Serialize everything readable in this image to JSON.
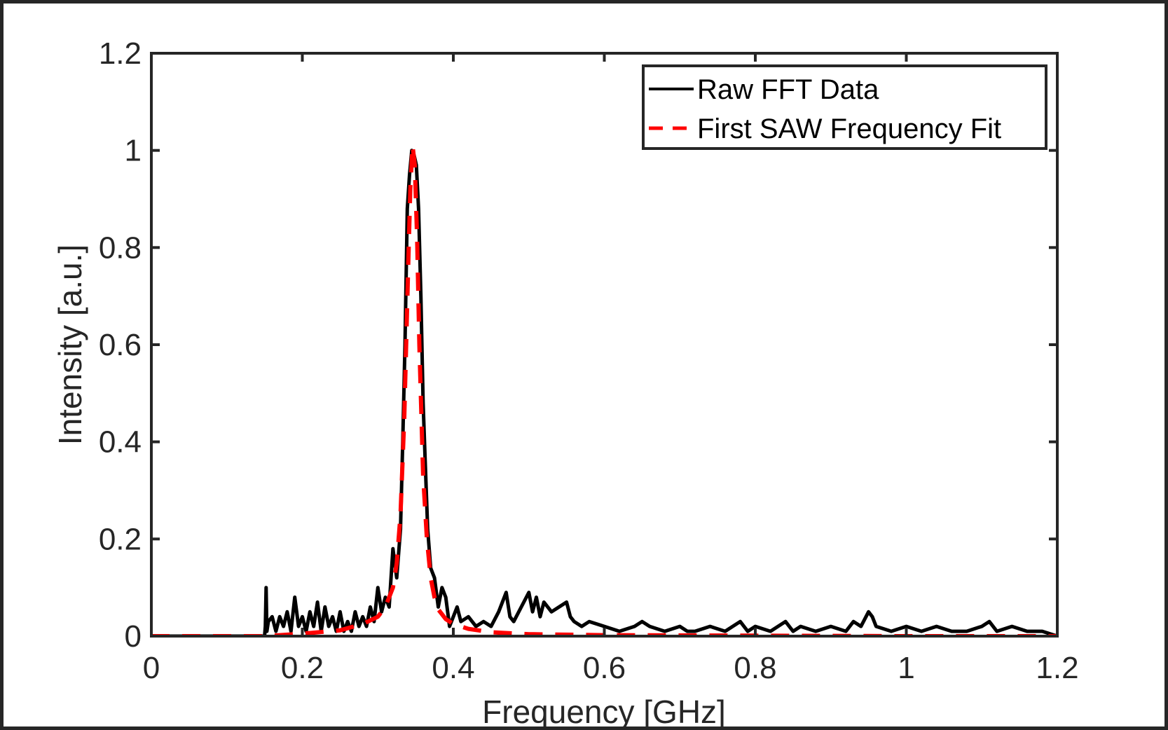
{
  "chart_data": {
    "type": "line",
    "xlabel": "Frequency [GHz]",
    "ylabel": "Intensity [a.u.]",
    "xlim": [
      0,
      1.2
    ],
    "ylim": [
      0,
      1.2
    ],
    "x_ticks": [
      "0",
      "0.2",
      "0.4",
      "0.6",
      "0.8",
      "1",
      "1.2"
    ],
    "y_ticks": [
      "0",
      "0.2",
      "0.4",
      "0.6",
      "0.8",
      "1",
      "1.2"
    ],
    "grid": false,
    "legend_position": "top-right",
    "series": [
      {
        "name": "Raw FFT Data",
        "color": "#000000",
        "style": "solid",
        "x": [
          0,
          0.05,
          0.1,
          0.15,
          0.151,
          0.152,
          0.153,
          0.155,
          0.16,
          0.165,
          0.17,
          0.175,
          0.18,
          0.185,
          0.19,
          0.195,
          0.2,
          0.205,
          0.21,
          0.215,
          0.22,
          0.225,
          0.23,
          0.235,
          0.24,
          0.245,
          0.25,
          0.255,
          0.26,
          0.265,
          0.27,
          0.275,
          0.28,
          0.285,
          0.29,
          0.295,
          0.3,
          0.305,
          0.31,
          0.315,
          0.32,
          0.325,
          0.33,
          0.333,
          0.336,
          0.339,
          0.342,
          0.345,
          0.348,
          0.351,
          0.354,
          0.357,
          0.36,
          0.363,
          0.366,
          0.37,
          0.375,
          0.38,
          0.385,
          0.39,
          0.395,
          0.4,
          0.405,
          0.41,
          0.42,
          0.43,
          0.44,
          0.45,
          0.46,
          0.47,
          0.475,
          0.48,
          0.49,
          0.5,
          0.505,
          0.51,
          0.515,
          0.52,
          0.53,
          0.54,
          0.55,
          0.555,
          0.56,
          0.57,
          0.58,
          0.6,
          0.62,
          0.64,
          0.65,
          0.66,
          0.68,
          0.7,
          0.71,
          0.72,
          0.74,
          0.76,
          0.78,
          0.79,
          0.8,
          0.82,
          0.84,
          0.85,
          0.86,
          0.88,
          0.9,
          0.92,
          0.93,
          0.94,
          0.95,
          0.955,
          0.96,
          0.98,
          1.0,
          1.02,
          1.04,
          1.06,
          1.08,
          1.1,
          1.11,
          1.12,
          1.14,
          1.16,
          1.18,
          1.2
        ],
        "y": [
          0,
          0,
          0,
          0,
          0.02,
          0.1,
          0.01,
          0.03,
          0.04,
          0.01,
          0.04,
          0.02,
          0.05,
          0.01,
          0.08,
          0.02,
          0.04,
          0.01,
          0.05,
          0.02,
          0.07,
          0.01,
          0.06,
          0.02,
          0.04,
          0.01,
          0.05,
          0.01,
          0.03,
          0.01,
          0.05,
          0.02,
          0.04,
          0.02,
          0.06,
          0.03,
          0.1,
          0.05,
          0.08,
          0.06,
          0.18,
          0.12,
          0.22,
          0.4,
          0.6,
          0.88,
          0.95,
          1.0,
          0.99,
          0.97,
          0.88,
          0.7,
          0.48,
          0.35,
          0.22,
          0.14,
          0.12,
          0.06,
          0.1,
          0.08,
          0.02,
          0.04,
          0.06,
          0.03,
          0.04,
          0.02,
          0.03,
          0.02,
          0.05,
          0.09,
          0.04,
          0.03,
          0.06,
          0.09,
          0.05,
          0.08,
          0.04,
          0.07,
          0.05,
          0.06,
          0.07,
          0.04,
          0.03,
          0.02,
          0.03,
          0.02,
          0.01,
          0.02,
          0.03,
          0.02,
          0.01,
          0.02,
          0.01,
          0.01,
          0.02,
          0.01,
          0.03,
          0.01,
          0.02,
          0.01,
          0.03,
          0.01,
          0.02,
          0.01,
          0.02,
          0.01,
          0.03,
          0.02,
          0.05,
          0.04,
          0.02,
          0.01,
          0.02,
          0.01,
          0.02,
          0.01,
          0.01,
          0.02,
          0.03,
          0.01,
          0.02,
          0.01,
          0.01,
          0
        ]
      },
      {
        "name": "First SAW Frequency Fit",
        "color": "#ff0000",
        "style": "dashed",
        "x": [
          0,
          0.05,
          0.1,
          0.15,
          0.2,
          0.25,
          0.28,
          0.3,
          0.31,
          0.32,
          0.325,
          0.33,
          0.335,
          0.34,
          0.343,
          0.346,
          0.349,
          0.352,
          0.355,
          0.36,
          0.365,
          0.37,
          0.375,
          0.38,
          0.39,
          0.4,
          0.42,
          0.45,
          0.5,
          0.6,
          0.8,
          1.0,
          1.2
        ],
        "y": [
          0,
          0,
          0,
          0.0,
          0.005,
          0.012,
          0.025,
          0.04,
          0.06,
          0.1,
          0.15,
          0.25,
          0.45,
          0.75,
          0.92,
          1.01,
          0.97,
          0.82,
          0.6,
          0.33,
          0.2,
          0.12,
          0.08,
          0.055,
          0.035,
          0.025,
          0.015,
          0.008,
          0.004,
          0.002,
          0.001,
          0.0,
          0
        ]
      }
    ]
  }
}
